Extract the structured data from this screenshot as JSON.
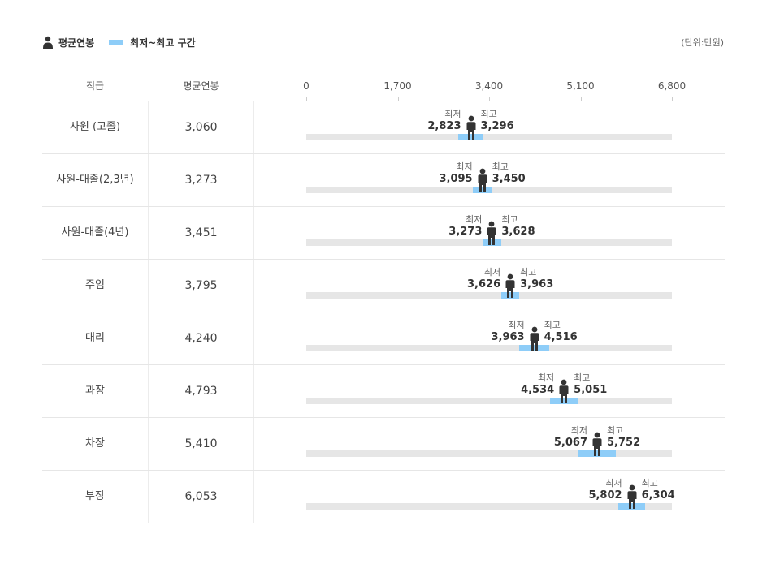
{
  "legend": {
    "avg_label": "평균연봉",
    "range_label": "최저~최고 구간"
  },
  "unit": "(단위:만원)",
  "columns": {
    "title": "직급",
    "avg": "평균연봉"
  },
  "colors": {
    "range": "#8ecdf8",
    "track": "#e6e6e6",
    "person": "#333333"
  },
  "chart_data": {
    "type": "table",
    "xlim": [
      0,
      6800
    ],
    "ticks": [
      "0",
      "1,700",
      "3,400",
      "5,100",
      "6,800"
    ],
    "tick_values": [
      0,
      1700,
      3400,
      5100,
      6800
    ],
    "rows": [
      {
        "title": "사원 (고졸)",
        "avg": "3,060",
        "avg_value": 3060,
        "min_caption": "최저",
        "max_caption": "최고",
        "min": "2,823",
        "min_value": 2823,
        "max": "3,296",
        "max_value": 3296
      },
      {
        "title": "사원-대졸(2,3년)",
        "avg": "3,273",
        "avg_value": 3273,
        "min_caption": "최저",
        "max_caption": "최고",
        "min": "3,095",
        "min_value": 3095,
        "max": "3,450",
        "max_value": 3450
      },
      {
        "title": "사원-대졸(4년)",
        "avg": "3,451",
        "avg_value": 3451,
        "min_caption": "최저",
        "max_caption": "최고",
        "min": "3,273",
        "min_value": 3273,
        "max": "3,628",
        "max_value": 3628
      },
      {
        "title": "주임",
        "avg": "3,795",
        "avg_value": 3795,
        "min_caption": "최저",
        "max_caption": "최고",
        "min": "3,626",
        "min_value": 3626,
        "max": "3,963",
        "max_value": 3963
      },
      {
        "title": "대리",
        "avg": "4,240",
        "avg_value": 4240,
        "min_caption": "최저",
        "max_caption": "최고",
        "min": "3,963",
        "min_value": 3963,
        "max": "4,516",
        "max_value": 4516
      },
      {
        "title": "과장",
        "avg": "4,793",
        "avg_value": 4793,
        "min_caption": "최저",
        "max_caption": "최고",
        "min": "4,534",
        "min_value": 4534,
        "max": "5,051",
        "max_value": 5051
      },
      {
        "title": "차장",
        "avg": "5,410",
        "avg_value": 5410,
        "min_caption": "최저",
        "max_caption": "최고",
        "min": "5,067",
        "min_value": 5067,
        "max": "5,752",
        "max_value": 5752
      },
      {
        "title": "부장",
        "avg": "6,053",
        "avg_value": 6053,
        "min_caption": "최저",
        "max_caption": "최고",
        "min": "5,802",
        "min_value": 5802,
        "max": "6,304",
        "max_value": 6304
      }
    ]
  }
}
